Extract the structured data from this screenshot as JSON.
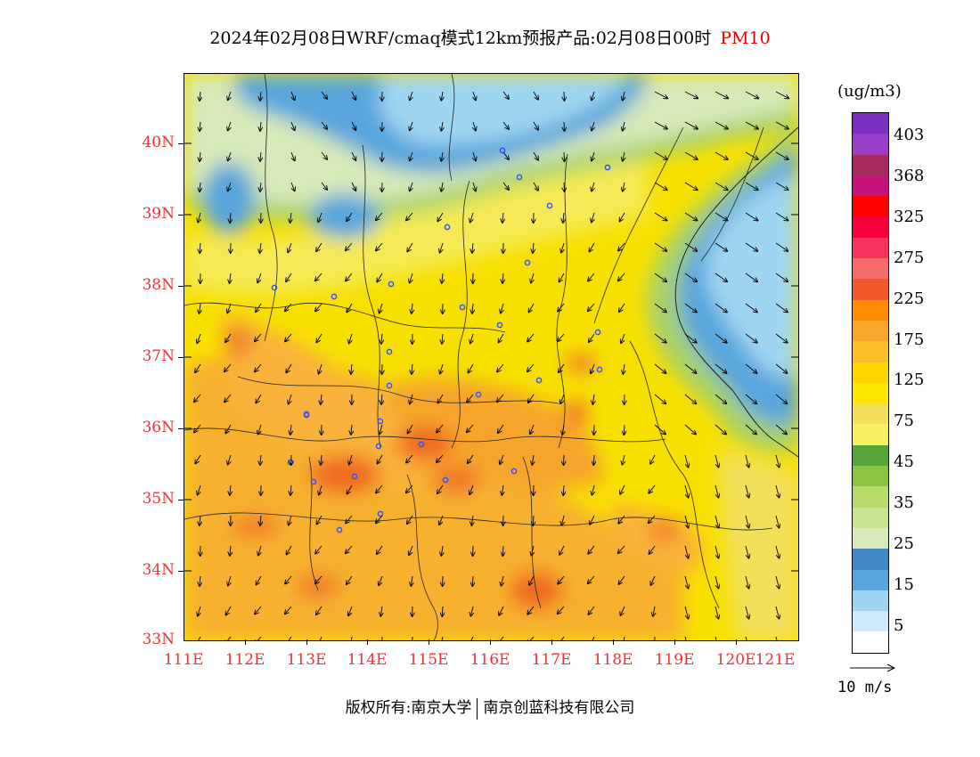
{
  "title": {
    "text": "2024年02月08日WRF/cmaq模式12km预报产品:02月08日00时",
    "pollutant": "PM10"
  },
  "axes": {
    "lat_labels": [
      "40N",
      "39N",
      "38N",
      "37N",
      "36N",
      "35N",
      "34N",
      "33N"
    ],
    "lon_labels": [
      "111E",
      "112E",
      "113E",
      "114E",
      "115E",
      "116E",
      "117E",
      "118E",
      "119E",
      "120E",
      "121E"
    ]
  },
  "colorbar": {
    "unit": "(ug/m3)",
    "levels": [
      "403",
      "368",
      "325",
      "275",
      "225",
      "175",
      "125",
      "75",
      "45",
      "35",
      "25",
      "15",
      "5"
    ],
    "colors": [
      "#7b2fbe",
      "#9b3dcb",
      "#a62b5c",
      "#c4137c",
      "#ff0000",
      "#f7003e",
      "#f8335c",
      "#f66b6b",
      "#f05a2a",
      "#ff8c00",
      "#f9a72a",
      "#fbbd2a",
      "#ffd700",
      "#ffe600",
      "#f3e05a",
      "#f7f060",
      "#58a63a",
      "#8cc63f",
      "#b8dc6a",
      "#c9e48e",
      "#d6e9b8",
      "#3f88c5",
      "#5aa6dc",
      "#9ed6f2",
      "#cfeafa",
      "#ffffff"
    ]
  },
  "wind_reference": {
    "label": "10 m/s"
  },
  "copyright": {
    "left": "版权所有:南京大学",
    "right": "南京创蓝科技有限公司"
  }
}
